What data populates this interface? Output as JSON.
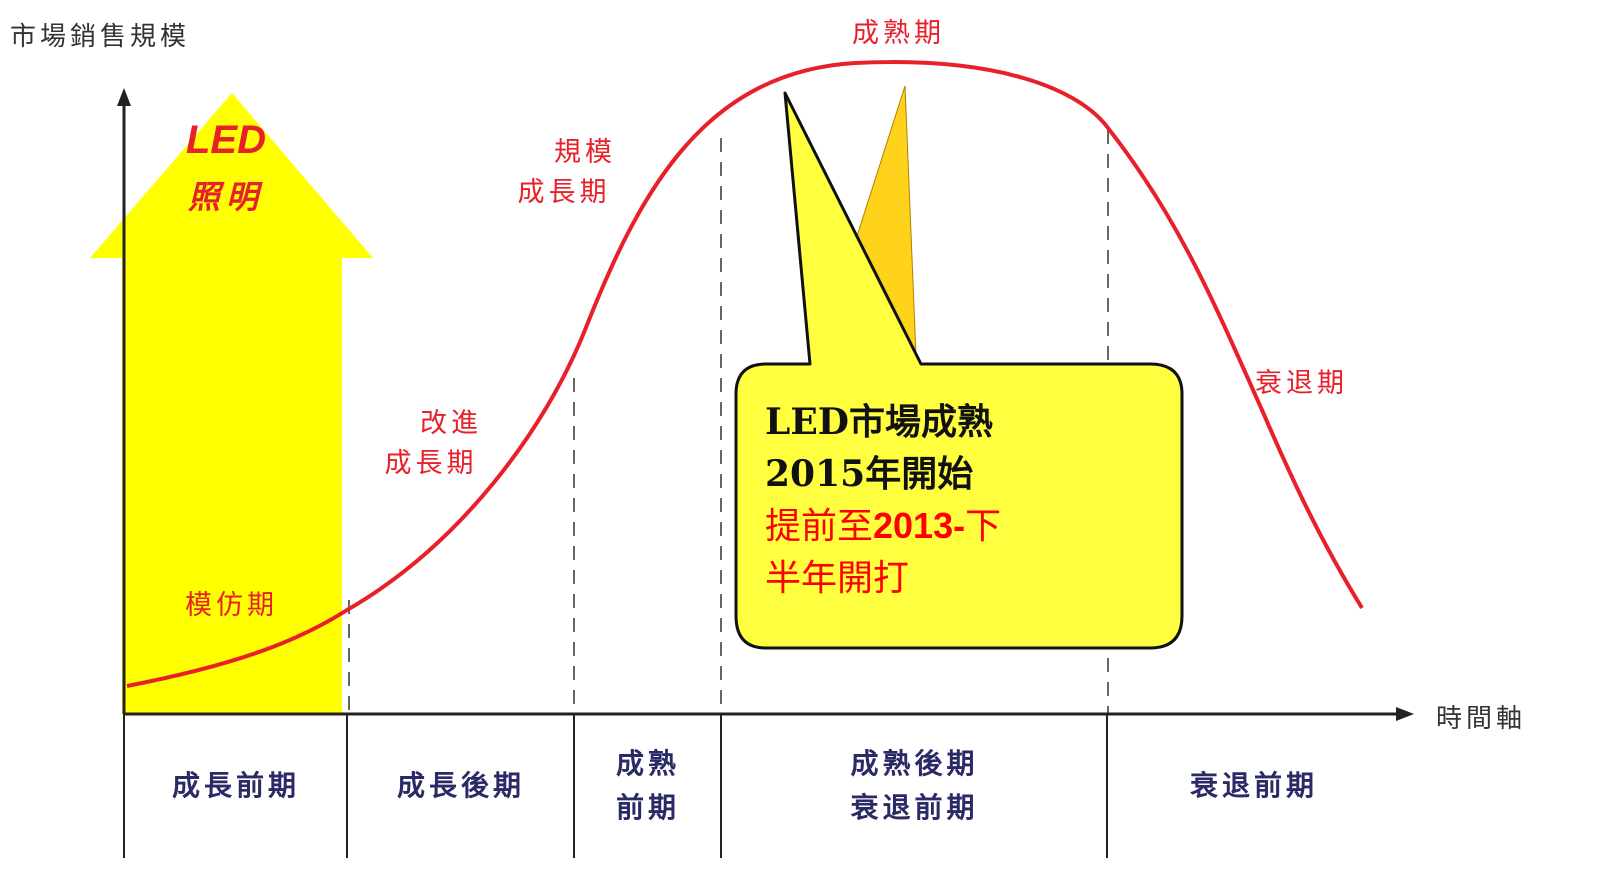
{
  "axes": {
    "y_label": "市場銷售規模",
    "x_label": "時間軸"
  },
  "arrow": {
    "line1": "LED",
    "line2": "照明"
  },
  "stages": {
    "imitation": "模仿期",
    "improve_line1": "改進",
    "improve_line2": "成長期",
    "scale_line1": "規模",
    "scale_line2": "成長期",
    "mature": "成熟期",
    "decline": "衰退期"
  },
  "phases": [
    {
      "line1": "成長前期"
    },
    {
      "line1": "成長後期"
    },
    {
      "line1": "成熟",
      "line2": "前期"
    },
    {
      "line1": "成熟後期",
      "line2": "衰退前期"
    },
    {
      "line1": "衰退前期"
    }
  ],
  "callout": {
    "line1": "LED市場成熟",
    "line2": "2015年開始",
    "line3a": "提前至",
    "line3b": "2013-",
    "line3c": "下",
    "line4": "半年開打"
  },
  "colors": {
    "curve": "#e8202a",
    "callout_fill": "#ffff40",
    "arrow_fill": "#ffff00",
    "phase_text": "#2a2a66"
  }
}
